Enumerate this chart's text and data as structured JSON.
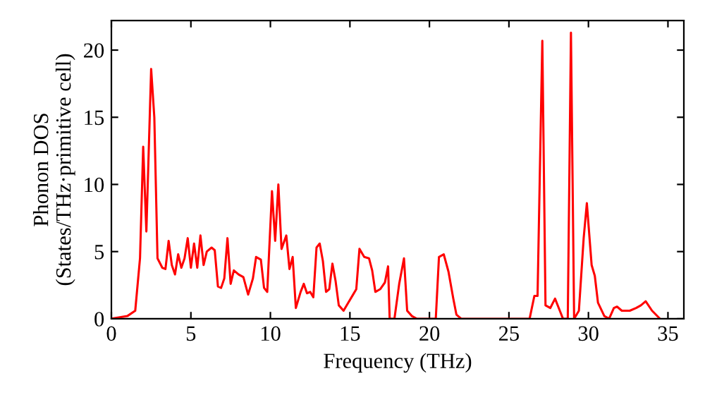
{
  "chart_data": {
    "type": "line",
    "xlabel": "Frequency (THz)",
    "ylabel": "Phonon DOS\n(States/THz·primitive cell)",
    "xlim": [
      0,
      36
    ],
    "ylim": [
      0,
      22.2
    ],
    "xticks": [
      0,
      5,
      10,
      15,
      20,
      25,
      30,
      35
    ],
    "yticks": [
      0,
      5,
      10,
      15,
      20
    ],
    "grid": false,
    "legend": false,
    "marker": "none",
    "line_style": "solid",
    "series": [
      {
        "color": "#ff0000",
        "x": [
          0,
          1,
          1.5,
          1.8,
          2.0,
          2.2,
          2.5,
          2.7,
          2.9,
          3.2,
          3.4,
          3.6,
          3.8,
          4.0,
          4.2,
          4.4,
          4.6,
          4.8,
          5.0,
          5.2,
          5.4,
          5.6,
          5.8,
          6.0,
          6.3,
          6.5,
          6.7,
          6.9,
          7.1,
          7.3,
          7.5,
          7.7,
          8.0,
          8.3,
          8.6,
          8.9,
          9.1,
          9.4,
          9.6,
          9.8,
          10.1,
          10.3,
          10.5,
          10.7,
          11.0,
          11.2,
          11.4,
          11.6,
          11.9,
          12.1,
          12.3,
          12.5,
          12.7,
          12.9,
          13.1,
          13.3,
          13.5,
          13.7,
          13.9,
          14.1,
          14.3,
          14.6,
          14.9,
          15.2,
          15.4,
          15.6,
          15.9,
          16.2,
          16.4,
          16.6,
          16.9,
          17.2,
          17.4,
          17.5,
          17.8,
          18.1,
          18.4,
          18.6,
          18.9,
          19.2,
          20.4,
          20.6,
          20.9,
          21.2,
          21.5,
          21.7,
          22,
          26.3,
          26.6,
          26.8,
          27.1,
          27.3,
          27.6,
          27.9,
          28.2,
          28.4,
          28.7,
          28.9,
          29.1,
          29.4,
          29.7,
          29.9,
          30.2,
          30.4,
          30.6,
          31.0,
          31.3,
          31.6,
          31.8,
          32.1,
          32.6,
          33.0,
          33.3,
          33.6,
          34.0,
          34.5
        ],
        "values": [
          0,
          0.2,
          0.6,
          4.5,
          12.8,
          6.5,
          18.6,
          15,
          4.5,
          3.8,
          3.7,
          5.8,
          4.0,
          3.3,
          4.8,
          3.8,
          4.5,
          6.0,
          3.8,
          5.6,
          3.8,
          6.2,
          4.0,
          5.0,
          5.3,
          5.1,
          2.4,
          2.3,
          3.0,
          6.0,
          2.6,
          3.6,
          3.3,
          3.1,
          1.8,
          3.0,
          4.6,
          4.4,
          2.3,
          2.0,
          9.5,
          5.8,
          10.0,
          5.2,
          6.2,
          3.7,
          4.6,
          0.8,
          2.0,
          2.6,
          1.9,
          2.0,
          1.6,
          5.3,
          5.6,
          4.3,
          2.0,
          2.2,
          4.1,
          2.8,
          1.0,
          0.6,
          1.2,
          1.8,
          2.2,
          5.2,
          4.6,
          4.5,
          3.6,
          2.0,
          2.2,
          2.7,
          3.9,
          0,
          0,
          2.6,
          4.5,
          0.6,
          0.2,
          0,
          0,
          4.6,
          4.8,
          3.5,
          1.5,
          0.3,
          0,
          0,
          1.7,
          1.7,
          20.7,
          1.0,
          0.8,
          1.5,
          0.6,
          0,
          0,
          21.3,
          0,
          0.6,
          6.0,
          8.6,
          4.0,
          3.2,
          1.2,
          0.2,
          0,
          0.8,
          0.9,
          0.6,
          0.6,
          0.8,
          1.0,
          1.3,
          0.6,
          0
        ]
      }
    ]
  }
}
